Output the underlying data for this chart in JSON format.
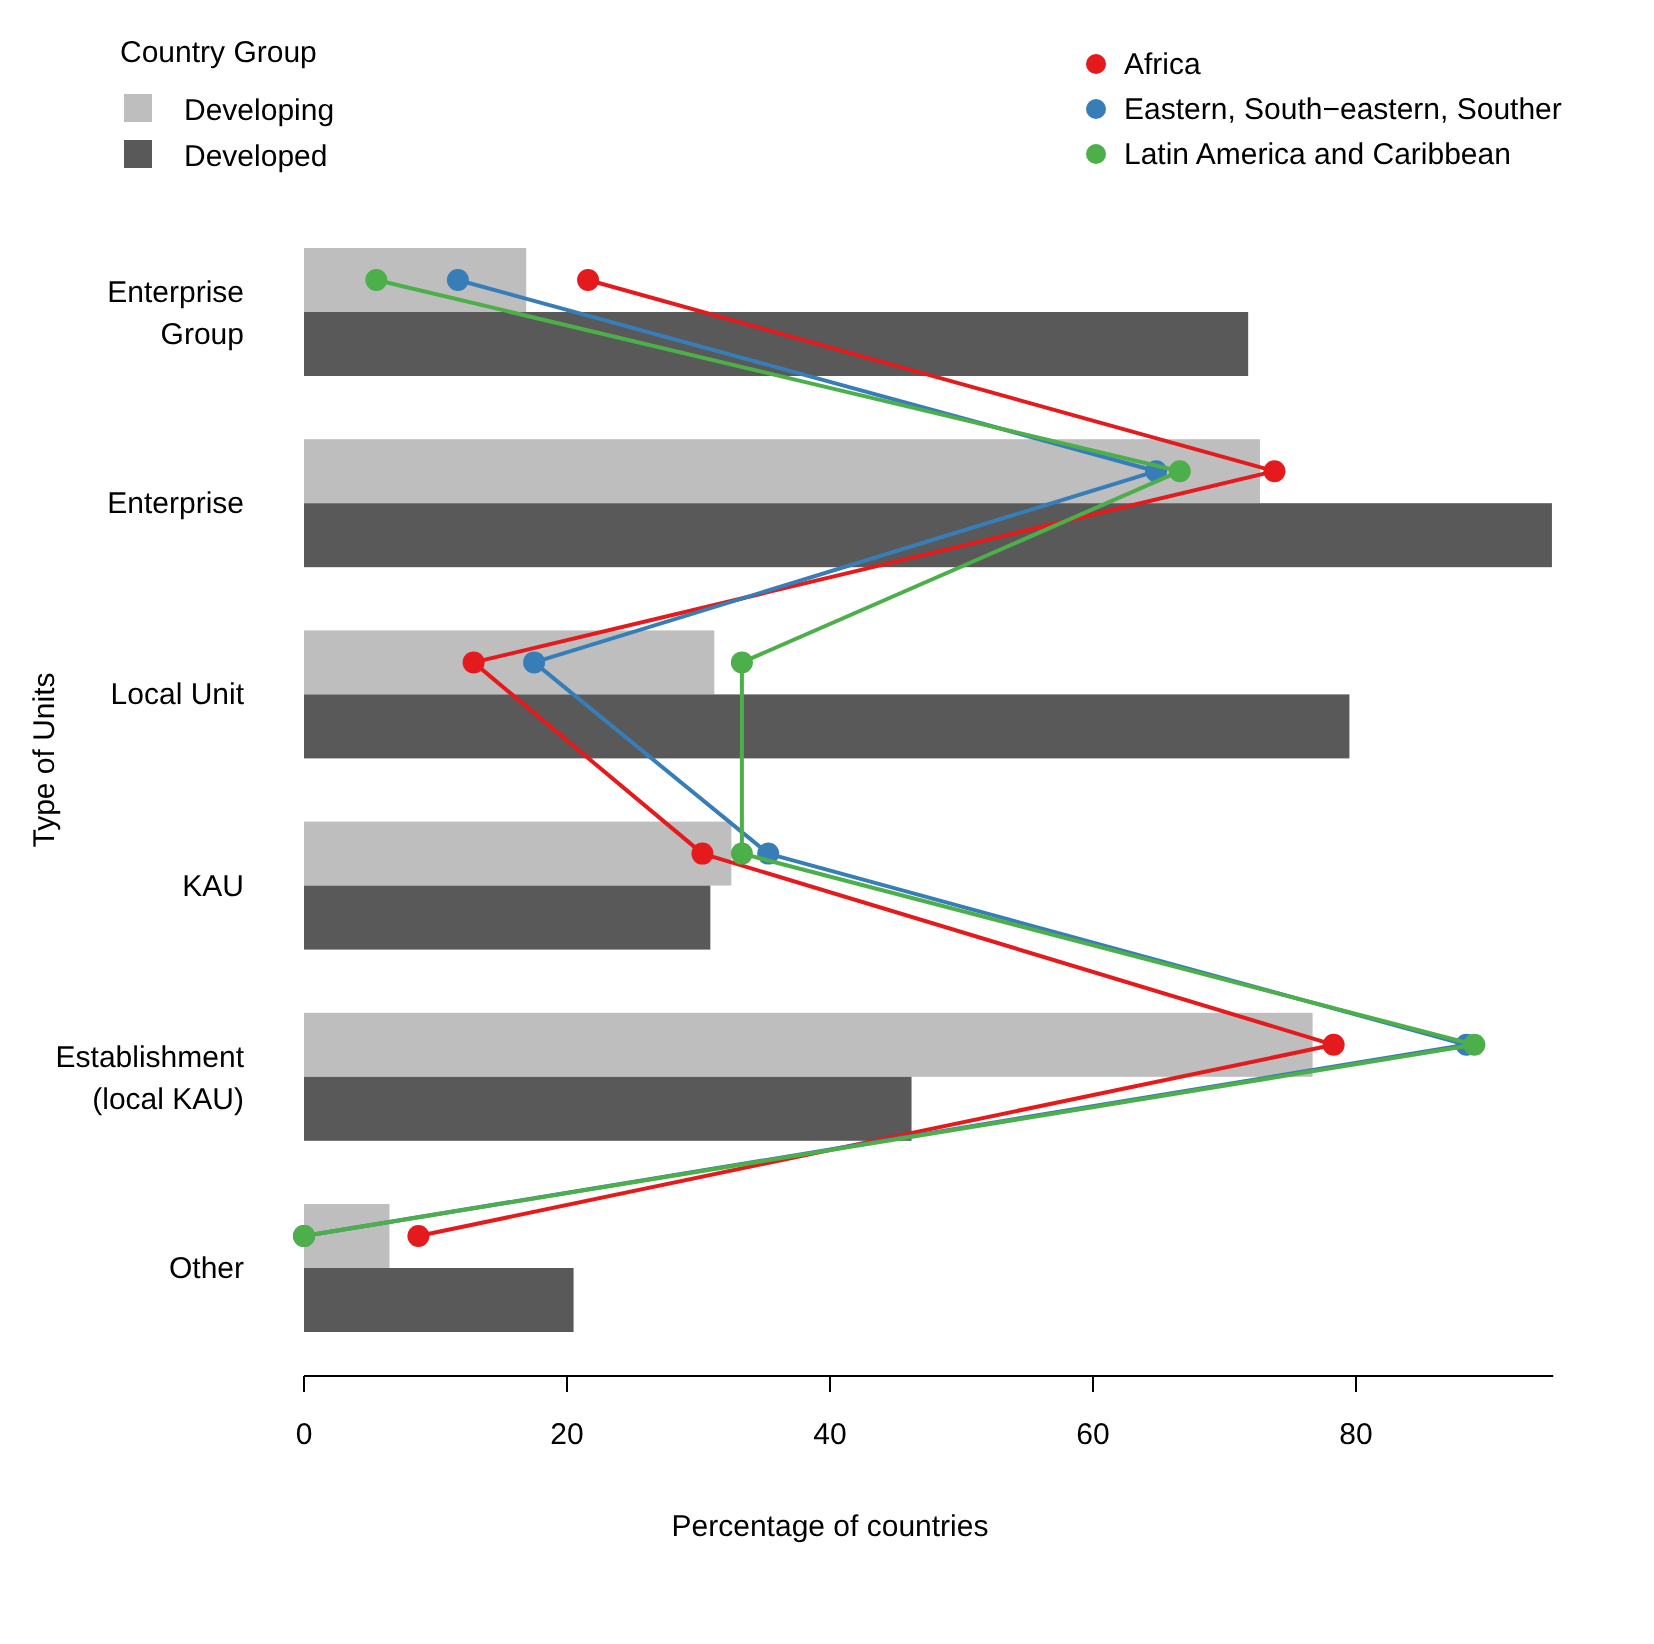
{
  "chart_data": {
    "type": "bar",
    "orientation": "horizontal",
    "xlabel": "Percentage of countries",
    "ylabel": "Type of Units",
    "legend_title": "Country Group",
    "legend": "top",
    "marker": "circle",
    "categories": [
      "Enterprise\nGroup",
      "Enterprise",
      "Local Unit",
      "KAU",
      "Establishment\n(local KAU)",
      "Other"
    ],
    "xlim": [
      0,
      95
    ],
    "xticks": [
      0,
      20,
      40,
      60,
      80
    ],
    "grid": false,
    "series": [
      {
        "name": "Developing",
        "type": "bar",
        "color": "#bebebe",
        "values": [
          16.9,
          72.7,
          31.2,
          32.5,
          76.7,
          6.5
        ]
      },
      {
        "name": "Developed",
        "type": "bar",
        "color": "#595959",
        "values": [
          71.8,
          94.9,
          79.5,
          30.9,
          46.2,
          20.5
        ]
      },
      {
        "name": "Africa",
        "type": "line",
        "color": "#e41a1c",
        "values": [
          21.6,
          73.8,
          12.9,
          30.3,
          78.3,
          8.7
        ]
      },
      {
        "name": "Eastern, South−eastern, Souther",
        "type": "line",
        "color": "#377eb8",
        "values": [
          11.7,
          64.8,
          17.5,
          35.3,
          88.4,
          0
        ]
      },
      {
        "name": "Latin America and Caribbean",
        "type": "line",
        "color": "#4daf4a",
        "values": [
          5.5,
          66.6,
          33.3,
          33.3,
          89,
          0
        ]
      }
    ]
  }
}
